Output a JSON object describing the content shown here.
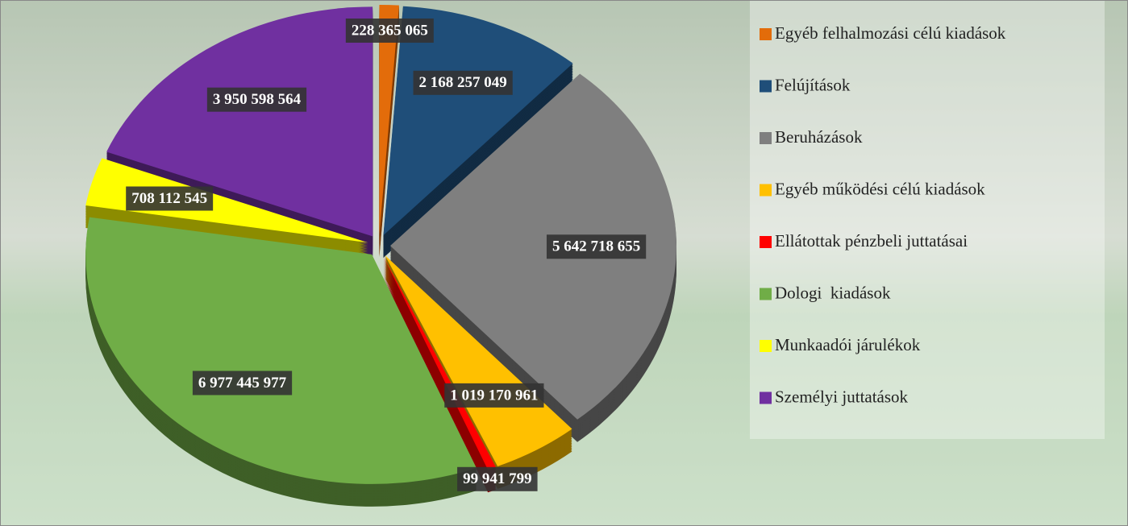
{
  "chart_data": {
    "type": "pie",
    "categories": [
      "Egyéb felhalmozási célú kiadások",
      "Felújítások",
      "Beruházások",
      "Egyéb működési célú kiadások",
      "Ellátottak pénzbeli juttatásai",
      "Dologi  kiadások",
      "Munkaadói járulékok",
      "Személyi juttatások"
    ],
    "values": [
      228365065,
      2168257049,
      5642718655,
      1019170961,
      99941799,
      6977445977,
      708112545,
      3950598564
    ],
    "value_labels": [
      "228 365 065",
      "2 168 257 049",
      "5 642 718 655",
      "1 019 170 961",
      "99 941 799",
      "6 977 445 977",
      "708 112 545",
      "3 950 598 564"
    ],
    "colors": [
      "#e36c0a",
      "#1f4e79",
      "#7f7f7f",
      "#ffc000",
      "#ff0000",
      "#70ad47",
      "#ffff00",
      "#7030a0"
    ],
    "legend": "right"
  }
}
